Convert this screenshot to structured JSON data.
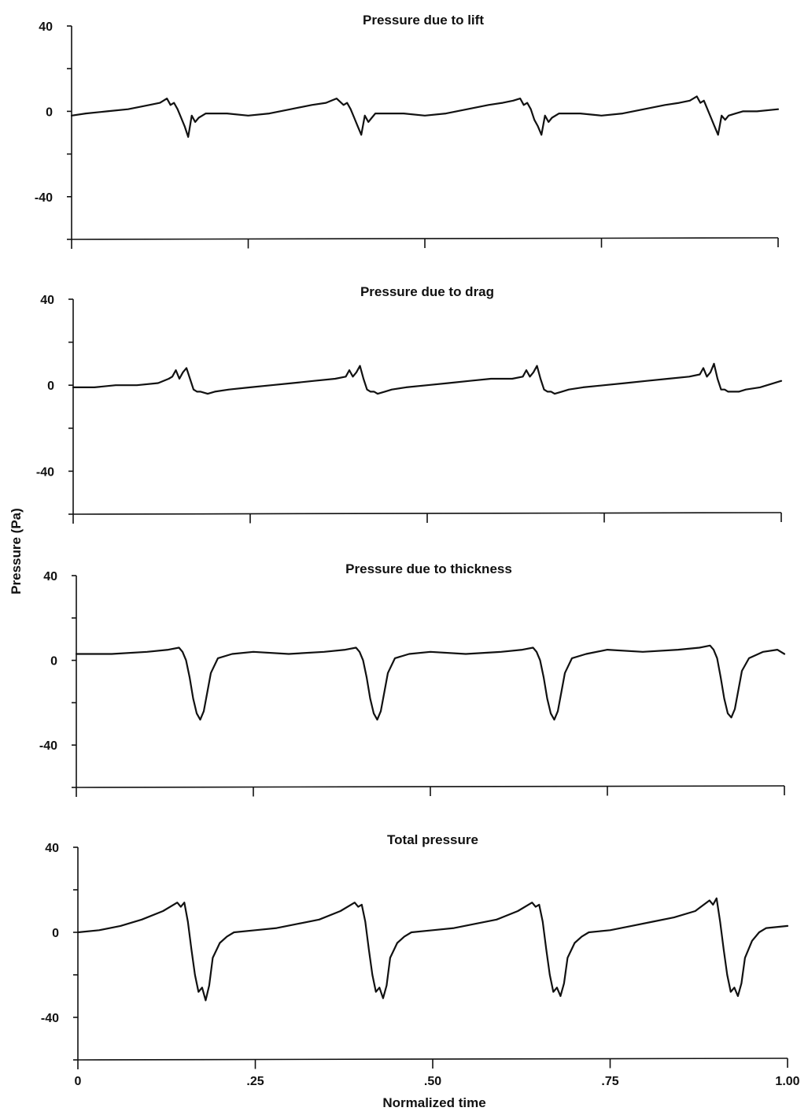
{
  "figure": {
    "xlabel": "Normalized time",
    "ylabel": "Pressure (Pa)"
  },
  "chart_data": [
    {
      "type": "line",
      "title": "Pressure due to lift",
      "xlim": [
        0,
        1
      ],
      "ylim": [
        -60,
        40
      ],
      "yticks": [
        "40",
        "0",
        "-40"
      ],
      "xticks": [],
      "series": [
        {
          "x": [
            0,
            0.02,
            0.05,
            0.08,
            0.11,
            0.125,
            0.135,
            0.14,
            0.145,
            0.15,
            0.155,
            0.16,
            0.165,
            0.17,
            0.175,
            0.18,
            0.19,
            0.2,
            0.22,
            0.25,
            0.28,
            0.31,
            0.34,
            0.36,
            0.375,
            0.385,
            0.39,
            0.395,
            0.4,
            0.405,
            0.41,
            0.415,
            0.42,
            0.425,
            0.43,
            0.44,
            0.45,
            0.47,
            0.5,
            0.53,
            0.56,
            0.59,
            0.61,
            0.625,
            0.635,
            0.64,
            0.645,
            0.65,
            0.655,
            0.66,
            0.665,
            0.67,
            0.675,
            0.68,
            0.69,
            0.7,
            0.72,
            0.75,
            0.78,
            0.81,
            0.84,
            0.86,
            0.875,
            0.885,
            0.89,
            0.895,
            0.9,
            0.905,
            0.91,
            0.915,
            0.92,
            0.925,
            0.93,
            0.94,
            0.95,
            0.97,
            1.0
          ],
          "y": [
            -2,
            -1,
            0,
            1,
            3,
            4,
            6,
            3,
            4,
            1,
            -3,
            -7,
            -12,
            -2,
            -5,
            -3,
            -1,
            -1,
            -1,
            -2,
            -1,
            1,
            3,
            4,
            6,
            3,
            4,
            1,
            -3,
            -7,
            -11,
            -2,
            -5,
            -3,
            -1,
            -1,
            -1,
            -1,
            -2,
            -1,
            1,
            3,
            4,
            5,
            6,
            3,
            4,
            1,
            -4,
            -7,
            -11,
            -2,
            -5,
            -3,
            -1,
            -1,
            -1,
            -2,
            -1,
            1,
            3,
            4,
            5,
            7,
            4,
            5,
            1,
            -3,
            -7,
            -11,
            -2,
            -4,
            -2,
            -1,
            0,
            0,
            1
          ]
        }
      ]
    },
    {
      "type": "line",
      "title": "Pressure due to drag",
      "xlim": [
        0,
        1
      ],
      "ylim": [
        -60,
        40
      ],
      "yticks": [
        "40",
        "0",
        "-40"
      ],
      "xticks": [],
      "series": [
        {
          "x": [
            0,
            0.03,
            0.06,
            0.09,
            0.12,
            0.135,
            0.14,
            0.145,
            0.15,
            0.155,
            0.16,
            0.165,
            0.17,
            0.175,
            0.18,
            0.19,
            0.2,
            0.22,
            0.25,
            0.28,
            0.31,
            0.34,
            0.37,
            0.385,
            0.39,
            0.395,
            0.4,
            0.405,
            0.41,
            0.415,
            0.42,
            0.425,
            0.43,
            0.44,
            0.45,
            0.47,
            0.5,
            0.53,
            0.56,
            0.59,
            0.62,
            0.635,
            0.64,
            0.645,
            0.65,
            0.655,
            0.66,
            0.665,
            0.67,
            0.675,
            0.68,
            0.69,
            0.7,
            0.72,
            0.75,
            0.78,
            0.81,
            0.84,
            0.87,
            0.885,
            0.89,
            0.895,
            0.9,
            0.905,
            0.91,
            0.915,
            0.92,
            0.925,
            0.93,
            0.94,
            0.95,
            0.97,
            1.0
          ],
          "y": [
            -1,
            -1,
            0,
            0,
            1,
            3,
            4,
            7,
            3,
            6,
            8,
            3,
            -2,
            -3,
            -3,
            -4,
            -3,
            -2,
            -1,
            0,
            1,
            2,
            3,
            4,
            7,
            4,
            6,
            9,
            3,
            -2,
            -3,
            -3,
            -4,
            -3,
            -2,
            -1,
            0,
            1,
            2,
            3,
            3,
            4,
            7,
            4,
            6,
            9,
            3,
            -2,
            -3,
            -3,
            -4,
            -3,
            -2,
            -1,
            0,
            1,
            2,
            3,
            4,
            5,
            8,
            4,
            6,
            10,
            3,
            -2,
            -2,
            -3,
            -3,
            -3,
            -2,
            -1,
            2
          ]
        }
      ]
    },
    {
      "type": "line",
      "title": "Pressure due to thickness",
      "xlim": [
        0,
        1
      ],
      "ylim": [
        -60,
        40
      ],
      "yticks": [
        "40",
        "0",
        "-40"
      ],
      "xticks": [],
      "series": [
        {
          "x": [
            0,
            0.05,
            0.1,
            0.13,
            0.145,
            0.15,
            0.155,
            0.16,
            0.165,
            0.17,
            0.175,
            0.18,
            0.185,
            0.19,
            0.2,
            0.22,
            0.25,
            0.3,
            0.35,
            0.38,
            0.395,
            0.4,
            0.405,
            0.41,
            0.415,
            0.42,
            0.425,
            0.43,
            0.435,
            0.44,
            0.45,
            0.47,
            0.5,
            0.55,
            0.6,
            0.63,
            0.645,
            0.65,
            0.655,
            0.66,
            0.665,
            0.67,
            0.675,
            0.68,
            0.685,
            0.69,
            0.7,
            0.72,
            0.75,
            0.8,
            0.85,
            0.88,
            0.895,
            0.9,
            0.905,
            0.91,
            0.915,
            0.92,
            0.925,
            0.93,
            0.935,
            0.94,
            0.95,
            0.97,
            0.99,
            1.0
          ],
          "y": [
            3,
            3,
            4,
            5,
            6,
            4,
            0,
            -8,
            -18,
            -25,
            -28,
            -24,
            -15,
            -6,
            1,
            3,
            4,
            3,
            4,
            5,
            6,
            4,
            0,
            -8,
            -18,
            -25,
            -28,
            -24,
            -15,
            -6,
            1,
            3,
            4,
            3,
            4,
            5,
            6,
            4,
            0,
            -8,
            -18,
            -25,
            -28,
            -24,
            -15,
            -6,
            1,
            3,
            5,
            4,
            5,
            6,
            7,
            5,
            1,
            -8,
            -18,
            -25,
            -27,
            -23,
            -14,
            -5,
            1,
            4,
            5,
            3
          ]
        }
      ]
    },
    {
      "type": "line",
      "title": "Total pressure",
      "xlim": [
        0,
        1
      ],
      "ylim": [
        -60,
        40
      ],
      "yticks": [
        "40",
        "0",
        "-40"
      ],
      "xticks": [
        "0",
        ".25",
        ".50",
        ".75",
        "1.00"
      ],
      "series": [
        {
          "x": [
            0,
            0.03,
            0.06,
            0.09,
            0.12,
            0.14,
            0.145,
            0.15,
            0.155,
            0.16,
            0.165,
            0.17,
            0.175,
            0.18,
            0.185,
            0.19,
            0.2,
            0.21,
            0.22,
            0.25,
            0.28,
            0.31,
            0.34,
            0.37,
            0.39,
            0.395,
            0.4,
            0.405,
            0.41,
            0.415,
            0.42,
            0.425,
            0.43,
            0.435,
            0.44,
            0.45,
            0.46,
            0.47,
            0.5,
            0.53,
            0.56,
            0.59,
            0.62,
            0.64,
            0.645,
            0.65,
            0.655,
            0.66,
            0.665,
            0.67,
            0.675,
            0.68,
            0.685,
            0.69,
            0.7,
            0.71,
            0.72,
            0.75,
            0.78,
            0.81,
            0.84,
            0.87,
            0.89,
            0.895,
            0.9,
            0.905,
            0.91,
            0.915,
            0.92,
            0.925,
            0.93,
            0.935,
            0.94,
            0.95,
            0.96,
            0.97,
            1.0
          ],
          "y": [
            0,
            1,
            3,
            6,
            10,
            14,
            12,
            14,
            5,
            -8,
            -20,
            -28,
            -26,
            -32,
            -25,
            -12,
            -5,
            -2,
            0,
            1,
            2,
            4,
            6,
            10,
            14,
            12,
            13,
            5,
            -8,
            -20,
            -28,
            -26,
            -31,
            -25,
            -12,
            -5,
            -2,
            0,
            1,
            2,
            4,
            6,
            10,
            14,
            12,
            13,
            5,
            -8,
            -20,
            -28,
            -26,
            -30,
            -24,
            -12,
            -5,
            -2,
            0,
            1,
            3,
            5,
            7,
            10,
            15,
            13,
            16,
            5,
            -8,
            -20,
            -28,
            -26,
            -30,
            -24,
            -12,
            -4,
            0,
            2,
            3
          ]
        }
      ]
    }
  ]
}
